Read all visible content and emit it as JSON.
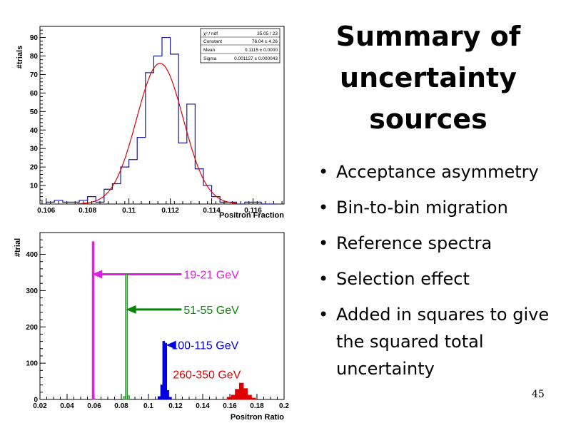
{
  "slide": {
    "title_lines": [
      "Summary of",
      "uncertainty",
      "sources"
    ],
    "bullets": [
      "Acceptance asymmetry",
      "Bin-to-bin migration",
      "Reference spectra",
      "Selection effect",
      "Added in squares to give the squared total uncertainty"
    ],
    "page_number": "45"
  },
  "chart_data": [
    {
      "type": "histogram",
      "title": "",
      "xlabel": "Positron Fraction",
      "ylabel": "#trials",
      "xlim": [
        0.1057,
        0.1175
      ],
      "ylim": [
        0,
        96
      ],
      "x_ticks": [
        0.106,
        0.108,
        0.11,
        0.112,
        0.114,
        0.116
      ],
      "y_ticks": [
        10,
        20,
        30,
        40,
        50,
        60,
        70,
        80,
        90
      ],
      "bin_width": 0.0004,
      "bin_start": 0.106,
      "counts": [
        1,
        2,
        1,
        1,
        2,
        4,
        1,
        8,
        11,
        20,
        24,
        36,
        71,
        80,
        90,
        81,
        33,
        54,
        19,
        10,
        4,
        1,
        1,
        0,
        1,
        1,
        0,
        0
      ],
      "colors": {
        "histogram": "#1a1aa0",
        "fit": "#e00000"
      },
      "fit": {
        "type": "gaussian",
        "constant": 76.04,
        "mean": 0.1115,
        "sigma": 0.001127
      },
      "stats_box": [
        {
          "label": "χ² / ndf",
          "value": "35.05 / 23"
        },
        {
          "label": "Constant",
          "value": "76.04 ± 4.26"
        },
        {
          "label": "Mean",
          "value": "0.1115 ± 0.0000"
        },
        {
          "label": "Sigma",
          "value": "0.001127 ± 0.000043"
        }
      ]
    },
    {
      "type": "histogram",
      "title": "",
      "xlabel": "Positron Ratio",
      "ylabel": "#trial",
      "xlim": [
        0.02,
        0.2
      ],
      "ylim": [
        0,
        460
      ],
      "x_ticks": [
        0.02,
        0.04,
        0.06,
        0.08,
        0.1,
        0.12,
        0.14,
        0.16,
        0.18,
        0.2
      ],
      "y_ticks": [
        0,
        100,
        200,
        300,
        400
      ],
      "series": [
        {
          "name": "19-21 GeV",
          "color": "#e020e0",
          "bins": [
            {
              "x0": 0.0585,
              "x1": 0.06,
              "count": 435
            },
            {
              "x0": 0.06,
              "x1": 0.0607,
              "count": 2
            }
          ],
          "label_count": 345,
          "arrow_tip_x": 0.0585
        },
        {
          "name": "51-55 GeV",
          "color": "#0a840a",
          "fill": "#7ed07e",
          "bins": [
            {
              "x0": 0.0815,
              "x1": 0.083,
              "count": 8
            },
            {
              "x0": 0.083,
              "x1": 0.0845,
              "count": 345
            },
            {
              "x0": 0.0845,
              "x1": 0.086,
              "count": 10
            }
          ],
          "label_count": 248,
          "arrow_tip_x": 0.0835
        },
        {
          "name": "100-115 GeV",
          "color": "#0000e0",
          "bins": [
            {
              "x0": 0.107,
              "x1": 0.109,
              "count": 8
            },
            {
              "x0": 0.109,
              "x1": 0.1105,
              "count": 40
            },
            {
              "x0": 0.1105,
              "x1": 0.112,
              "count": 160
            },
            {
              "x0": 0.112,
              "x1": 0.1135,
              "count": 155
            },
            {
              "x0": 0.1135,
              "x1": 0.115,
              "count": 25
            },
            {
              "x0": 0.115,
              "x1": 0.117,
              "count": 6
            }
          ],
          "label_count": 150,
          "arrow_tip_x": 0.113
        },
        {
          "name": "260-350 GeV",
          "color": "#e00000",
          "bins": [
            {
              "x0": 0.158,
              "x1": 0.161,
              "count": 6
            },
            {
              "x0": 0.161,
              "x1": 0.164,
              "count": 12
            },
            {
              "x0": 0.164,
              "x1": 0.167,
              "count": 28
            },
            {
              "x0": 0.167,
              "x1": 0.17,
              "count": 45
            },
            {
              "x0": 0.17,
              "x1": 0.173,
              "count": 30
            },
            {
              "x0": 0.173,
              "x1": 0.176,
              "count": 12
            },
            {
              "x0": 0.176,
              "x1": 0.179,
              "count": 4
            }
          ],
          "label_count": 70
        }
      ]
    }
  ]
}
